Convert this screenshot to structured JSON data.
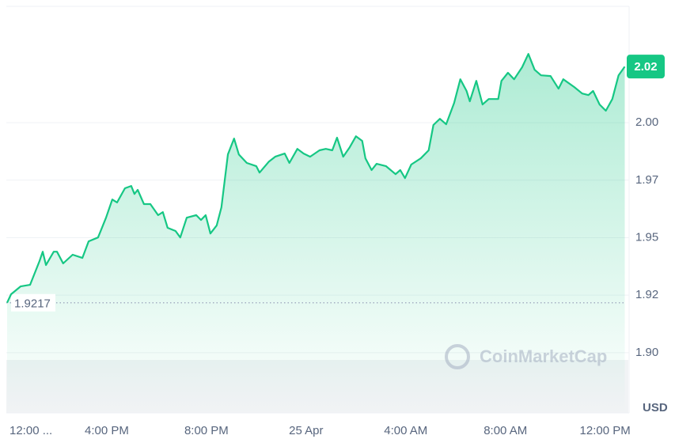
{
  "chart_data": {
    "type": "line",
    "unit": "USD",
    "watermark": "CoinMarketCap",
    "color": "#16c784",
    "grid": true,
    "xlim": [
      0,
      24.9
    ],
    "ylim": [
      1.8738,
      2.0506
    ],
    "xticks": [
      {
        "value": 0,
        "label": "12:00 ..."
      },
      {
        "value": 4,
        "label": "4:00 PM"
      },
      {
        "value": 8,
        "label": "8:00 PM"
      },
      {
        "value": 12,
        "label": "25 Apr"
      },
      {
        "value": 16,
        "label": "4:00 AM"
      },
      {
        "value": 20,
        "label": "8:00 AM"
      },
      {
        "value": 24,
        "label": "12:00 PM"
      }
    ],
    "yticks": [
      {
        "value": 2.0,
        "label": "2.00"
      },
      {
        "value": 1.975,
        "label": "1.97"
      },
      {
        "value": 1.95,
        "label": "1.95"
      },
      {
        "value": 1.925,
        "label": "1.92"
      },
      {
        "value": 1.9,
        "label": "1.90"
      }
    ],
    "reference_line": {
      "value": 1.9217,
      "label": "1.9217"
    },
    "last_price": {
      "value": 2.0244,
      "label": "2.02"
    },
    "x": [
      0,
      0.16,
      0.54,
      0.92,
      1.3,
      1.43,
      1.56,
      1.87,
      2.0,
      2.25,
      2.63,
      3.02,
      3.27,
      3.65,
      3.97,
      4.22,
      4.41,
      4.73,
      4.98,
      5.11,
      5.24,
      5.49,
      5.75,
      6.06,
      6.25,
      6.44,
      6.76,
      6.95,
      7.21,
      7.59,
      7.78,
      7.97,
      8.16,
      8.41,
      8.6,
      8.86,
      9.11,
      9.3,
      9.62,
      10.0,
      10.13,
      10.51,
      10.76,
      11.14,
      11.33,
      11.65,
      11.9,
      12.16,
      12.54,
      12.79,
      13.05,
      13.24,
      13.49,
      13.75,
      14.0,
      14.25,
      14.38,
      14.63,
      14.83,
      15.21,
      15.59,
      15.78,
      15.97,
      16.22,
      16.6,
      16.92,
      17.11,
      17.37,
      17.62,
      17.94,
      18.19,
      18.44,
      18.57,
      18.83,
      19.08,
      19.33,
      19.71,
      19.84,
      20.1,
      20.35,
      20.67,
      20.92,
      21.17,
      21.43,
      21.81,
      22.13,
      22.32,
      22.76,
      23.08,
      23.33,
      23.52,
      23.78,
      24.03,
      24.29,
      24.54,
      24.79
    ],
    "values": [
      1.9217,
      1.9254,
      1.9288,
      1.9295,
      1.9398,
      1.9439,
      1.9381,
      1.9439,
      1.9439,
      1.9388,
      1.9426,
      1.9412,
      1.9484,
      1.9501,
      1.9587,
      1.9666,
      1.9653,
      1.9715,
      1.9725,
      1.969,
      1.9708,
      1.9646,
      1.9646,
      1.9598,
      1.9611,
      1.9543,
      1.9529,
      1.9501,
      1.9587,
      1.9598,
      1.9577,
      1.9598,
      1.9518,
      1.9553,
      1.9632,
      1.9862,
      1.9931,
      1.9862,
      1.9825,
      1.9811,
      1.9783,
      1.9831,
      1.9852,
      1.9866,
      1.9825,
      1.9886,
      1.9866,
      1.9852,
      1.988,
      1.9886,
      1.988,
      1.9935,
      1.9852,
      1.9893,
      1.9941,
      1.9921,
      1.9845,
      1.9794,
      1.9821,
      1.9811,
      1.9776,
      1.9794,
      1.9759,
      1.9818,
      1.9845,
      1.988,
      1.999,
      2.0017,
      1.9993,
      2.0086,
      2.0189,
      2.0138,
      2.0093,
      2.0182,
      2.0079,
      2.0103,
      2.0103,
      2.0182,
      2.0217,
      2.0189,
      2.0241,
      2.0299,
      2.023,
      2.0206,
      2.0203,
      2.0148,
      2.0189,
      2.0155,
      2.0127,
      2.012,
      2.0138,
      2.0079,
      2.0052,
      2.0103,
      2.0206,
      2.0244
    ]
  }
}
